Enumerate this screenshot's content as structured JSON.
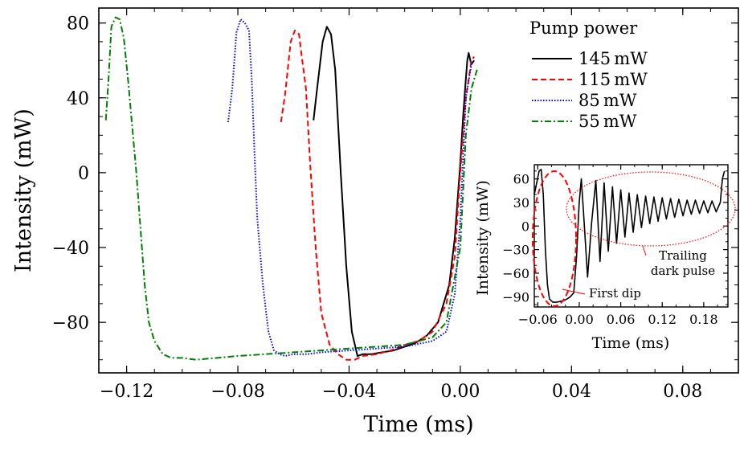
{
  "chart_data": [
    {
      "type": "line",
      "title": "",
      "xlabel": "Time (ms)",
      "ylabel": "Intensity (mW)",
      "xlim": [
        -0.13,
        0.1
      ],
      "ylim": [
        -107,
        88
      ],
      "x_ticks": [
        -0.12,
        -0.08,
        -0.04,
        0.0,
        0.04,
        0.08
      ],
      "x_tick_labels": [
        "−0.12",
        "−0.08",
        "−0.04",
        "0.00",
        "0.04",
        "0.08"
      ],
      "y_ticks": [
        80,
        40,
        0,
        -40,
        -80
      ],
      "y_tick_labels": [
        "80",
        "40",
        "0",
        "−40",
        "−80"
      ],
      "legend_title": "Pump power",
      "legend_position": "top-right",
      "series": [
        {
          "name": "145 mW",
          "color": "#000000",
          "dash": "solid",
          "x": [
            -0.0528,
            -0.0515,
            -0.0495,
            -0.048,
            -0.0465,
            -0.045,
            -0.043,
            -0.041,
            -0.039,
            -0.037,
            -0.035,
            -0.032,
            -0.028,
            -0.024,
            -0.02,
            -0.016,
            -0.012,
            -0.008,
            -0.004,
            -0.002,
            0.0,
            0.001,
            0.002,
            0.0025,
            0.003,
            0.0036,
            0.004,
            0.0045,
            0.005
          ],
          "y": [
            28,
            45,
            70,
            78,
            74,
            55,
            0,
            -50,
            -85,
            -98,
            -97,
            -97,
            -96,
            -95,
            -93,
            -91,
            -87,
            -80,
            -60,
            -35,
            5,
            30,
            50,
            60,
            64,
            60,
            58,
            59,
            60
          ]
        },
        {
          "name": "115 mW",
          "color": "#ff0000",
          "dash": "dashed",
          "x": [
            -0.0645,
            -0.063,
            -0.061,
            -0.0595,
            -0.058,
            -0.057,
            -0.0555,
            -0.054,
            -0.052,
            -0.05,
            -0.047,
            -0.044,
            -0.041,
            -0.038,
            -0.035,
            -0.03,
            -0.025,
            -0.02,
            -0.015,
            -0.01,
            -0.005,
            -0.002,
            0.0,
            0.002,
            0.004,
            0.005
          ],
          "y": [
            27,
            42,
            70,
            76,
            74,
            62,
            45,
            5,
            -40,
            -75,
            -92,
            -97,
            -100,
            -100,
            -98,
            -97,
            -95,
            -92,
            -90,
            -85,
            -70,
            -45,
            0,
            40,
            60,
            62
          ]
        },
        {
          "name": "85 mW",
          "color": "#0000ff",
          "dash": "dotted",
          "x": [
            -0.0835,
            -0.082,
            -0.0805,
            -0.079,
            -0.0775,
            -0.076,
            -0.075,
            -0.074,
            -0.073,
            -0.071,
            -0.069,
            -0.067,
            -0.065,
            -0.063,
            -0.06,
            -0.055,
            -0.05,
            -0.04,
            -0.03,
            -0.02,
            -0.01,
            -0.005,
            -0.002,
            0.0,
            0.002,
            0.004,
            0.005
          ],
          "y": [
            27,
            45,
            75,
            82,
            80,
            76,
            50,
            10,
            -25,
            -60,
            -85,
            -95,
            -97,
            -98,
            -97,
            -97,
            -96,
            -95,
            -94,
            -93,
            -90,
            -85,
            -65,
            -25,
            40,
            58,
            60
          ]
        },
        {
          "name": "55 mW",
          "color": "#008000",
          "dash": "dashdot",
          "x": [
            -0.1275,
            -0.1265,
            -0.1255,
            -0.124,
            -0.1225,
            -0.121,
            -0.1195,
            -0.118,
            -0.1165,
            -0.115,
            -0.1135,
            -0.112,
            -0.11,
            -0.107,
            -0.104,
            -0.1,
            -0.095,
            -0.08,
            -0.06,
            -0.04,
            -0.02,
            -0.01,
            -0.005,
            0.0,
            0.002,
            0.004,
            0.006
          ],
          "y": [
            28,
            50,
            78,
            83,
            82,
            72,
            50,
            25,
            0,
            -30,
            -60,
            -80,
            -90,
            -97,
            -99,
            -99,
            -100,
            -98,
            -96,
            -94,
            -92,
            -88,
            -80,
            -40,
            20,
            45,
            55
          ]
        }
      ]
    },
    {
      "type": "line",
      "title": "",
      "xlabel": "Time (ms)",
      "ylabel": "Intensity (mW)",
      "xlim": [
        -0.065,
        0.215
      ],
      "ylim": [
        -103,
        78
      ],
      "x_ticks": [
        -0.06,
        0.0,
        0.06,
        0.12,
        0.18
      ],
      "x_tick_labels": [
        "−0.06",
        "0.00",
        "0.06",
        "0.12",
        "0.18"
      ],
      "y_ticks": [
        60,
        30,
        0,
        -30,
        -60,
        -90
      ],
      "y_tick_labels": [
        "60",
        "30",
        "0",
        "−30",
        "−60",
        "−90"
      ],
      "series": [
        {
          "name": "145 mW",
          "color": "#000000",
          "x": [
            -0.065,
            -0.058,
            -0.055,
            -0.052,
            -0.049,
            -0.046,
            -0.043,
            -0.038,
            -0.033,
            -0.028,
            -0.023,
            -0.018,
            -0.013,
            -0.008,
            -0.004,
            0.0,
            0.003,
            0.006,
            0.012,
            0.018,
            0.024,
            0.03,
            0.036,
            0.042,
            0.048,
            0.054,
            0.06,
            0.066,
            0.072,
            0.078,
            0.084,
            0.09,
            0.096,
            0.102,
            0.108,
            0.114,
            0.12,
            0.126,
            0.132,
            0.138,
            0.144,
            0.15,
            0.156,
            0.162,
            0.168,
            0.174,
            0.18,
            0.186,
            0.192,
            0.198,
            0.204,
            0.207,
            0.21
          ],
          "y": [
            40,
            70,
            72,
            40,
            -30,
            -75,
            -93,
            -97,
            -97,
            -96,
            -95,
            -93,
            -90,
            -85,
            -40,
            30,
            60,
            20,
            -65,
            5,
            58,
            -45,
            55,
            -32,
            50,
            -22,
            46,
            -14,
            42,
            -8,
            40,
            -2,
            38,
            3,
            37,
            6,
            36,
            9,
            35,
            11,
            34,
            13,
            33,
            15,
            33,
            16,
            32,
            17,
            32,
            18,
            30,
            60,
            70
          ]
        }
      ],
      "annotations": [
        {
          "text": "First dip"
        },
        {
          "text": "Trailing"
        },
        {
          "text": "dark pulse"
        }
      ]
    }
  ],
  "legend": {
    "title": "Pump power",
    "items": [
      {
        "label": "145 mW",
        "color": "#000000",
        "dash": "solid"
      },
      {
        "label": "115 mW",
        "color": "#ff0000",
        "dash": "dashed"
      },
      {
        "label": "85 mW",
        "color": "#0000ff",
        "dash": "dotted"
      },
      {
        "label": "55 mW",
        "color": "#008000",
        "dash": "dashdot"
      }
    ]
  }
}
